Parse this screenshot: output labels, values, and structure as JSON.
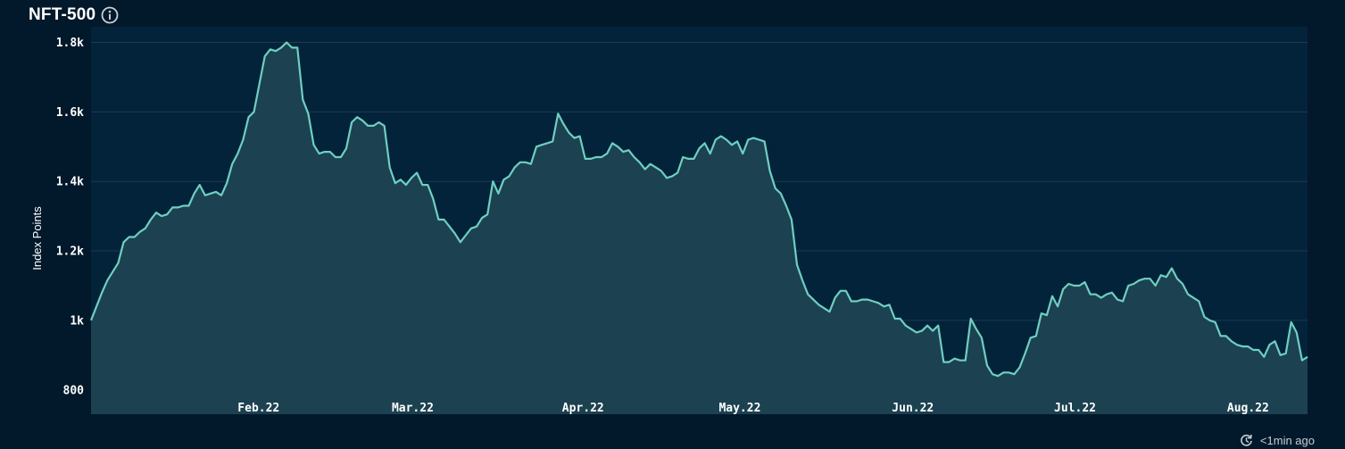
{
  "header": {
    "title": "NFT-500",
    "info_icon": "info-icon"
  },
  "footer": {
    "updated_text": "<1min ago",
    "refresh_icon": "refresh-icon"
  },
  "colors": {
    "background": "#02192b",
    "plot_background": "#03233a",
    "line": "#6ecfc2",
    "area_fill": "#1c4150",
    "grid": "#1e3a52"
  },
  "chart_data": {
    "type": "area",
    "title": "NFT-500",
    "ylabel": "Index Points",
    "xlabel": "",
    "ylim": [
      730,
      1845
    ],
    "y_ticks": [
      {
        "value": 800,
        "label": "800"
      },
      {
        "value": 1000,
        "label": "1k"
      },
      {
        "value": 1200,
        "label": "1.2k"
      },
      {
        "value": 1400,
        "label": "1.4k"
      },
      {
        "value": 1600,
        "label": "1.6k"
      },
      {
        "value": 1800,
        "label": "1.8k"
      }
    ],
    "x_range": [
      0,
      225
    ],
    "x_ticks": [
      {
        "value": 31,
        "label": "Feb.22"
      },
      {
        "value": 59.5,
        "label": "Mar.22"
      },
      {
        "value": 91,
        "label": "Apr.22"
      },
      {
        "value": 120,
        "label": "May.22"
      },
      {
        "value": 152,
        "label": "Jun.22"
      },
      {
        "value": 182,
        "label": "Jul.22"
      },
      {
        "value": 214,
        "label": "Aug.22"
      }
    ],
    "grid": true,
    "legend": "none",
    "series": [
      {
        "values": [
          1000,
          1040,
          1080,
          1115,
          1140,
          1165,
          1225,
          1240,
          1240,
          1255,
          1265,
          1290,
          1310,
          1300,
          1305,
          1325,
          1325,
          1330,
          1330,
          1365,
          1390,
          1360,
          1365,
          1370,
          1360,
          1395,
          1450,
          1480,
          1520,
          1585,
          1600,
          1680,
          1760,
          1780,
          1775,
          1785,
          1800,
          1785,
          1785,
          1635,
          1595,
          1505,
          1480,
          1485,
          1485,
          1470,
          1470,
          1495,
          1570,
          1585,
          1575,
          1560,
          1560,
          1570,
          1560,
          1440,
          1395,
          1405,
          1390,
          1410,
          1425,
          1390,
          1390,
          1350,
          1290,
          1290,
          1270,
          1250,
          1225,
          1245,
          1265,
          1270,
          1295,
          1305,
          1400,
          1365,
          1405,
          1415,
          1440,
          1455,
          1455,
          1450,
          1500,
          1505,
          1510,
          1515,
          1595,
          1565,
          1540,
          1525,
          1530,
          1465,
          1465,
          1470,
          1470,
          1480,
          1510,
          1500,
          1485,
          1490,
          1470,
          1455,
          1435,
          1450,
          1440,
          1430,
          1410,
          1415,
          1425,
          1470,
          1465,
          1465,
          1495,
          1510,
          1480,
          1520,
          1530,
          1520,
          1505,
          1515,
          1480,
          1520,
          1525,
          1520,
          1515,
          1430,
          1380,
          1365,
          1330,
          1290,
          1160,
          1115,
          1075,
          1060,
          1045,
          1035,
          1025,
          1065,
          1085,
          1085,
          1055,
          1055,
          1060,
          1060,
          1055,
          1050,
          1040,
          1045,
          1005,
          1005,
          985,
          975,
          965,
          970,
          985,
          970,
          985,
          880,
          880,
          890,
          885,
          885,
          1005,
          975,
          950,
          870,
          845,
          840,
          850,
          850,
          845,
          865,
          905,
          950,
          955,
          1020,
          1015,
          1070,
          1040,
          1090,
          1105,
          1100,
          1100,
          1110,
          1075,
          1075,
          1065,
          1075,
          1080,
          1060,
          1055,
          1100,
          1105,
          1115,
          1120,
          1120,
          1100,
          1130,
          1125,
          1150,
          1120,
          1105,
          1075,
          1065,
          1055,
          1010,
          1000,
          995,
          955,
          955,
          940,
          930,
          925,
          925,
          915,
          915,
          895,
          930,
          940,
          900,
          905,
          995,
          965,
          885,
          895
        ]
      }
    ]
  }
}
